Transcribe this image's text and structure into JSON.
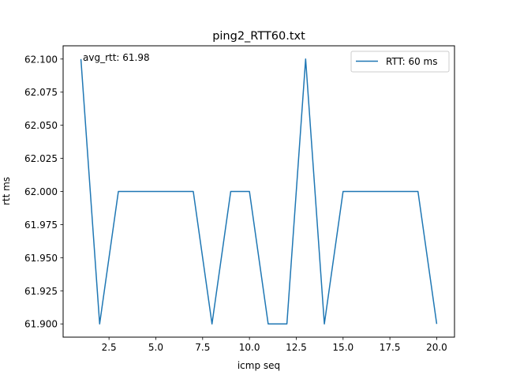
{
  "chart_data": {
    "type": "line",
    "title": "ping2_RTT60.txt",
    "xlabel": "icmp seq",
    "ylabel": "rtt ms",
    "xlim": [
      0.05,
      20.95
    ],
    "ylim": [
      61.89,
      62.11
    ],
    "xticks": [
      2.5,
      5.0,
      7.5,
      10.0,
      12.5,
      15.0,
      17.5,
      20.0
    ],
    "xtick_labels": [
      "2.5",
      "5.0",
      "7.5",
      "10.0",
      "12.5",
      "15.0",
      "17.5",
      "20.0"
    ],
    "yticks": [
      61.9,
      61.925,
      61.95,
      61.975,
      62.0,
      62.025,
      62.05,
      62.075,
      62.1
    ],
    "ytick_labels": [
      "61.900",
      "61.925",
      "61.950",
      "61.975",
      "62.000",
      "62.025",
      "62.050",
      "62.075",
      "62.100"
    ],
    "grid": false,
    "legend_position": "top-right",
    "annotation": "avg_rtt: 61.98",
    "series": [
      {
        "name": "RTT: 60 ms",
        "color": "#1f77b4",
        "x": [
          1,
          2,
          3,
          4,
          5,
          6,
          7,
          8,
          9,
          10,
          11,
          12,
          13,
          14,
          15,
          16,
          17,
          18,
          19,
          20
        ],
        "y": [
          62.1,
          61.9,
          62.0,
          62.0,
          62.0,
          62.0,
          62.0,
          61.9,
          62.0,
          62.0,
          61.9,
          61.9,
          62.1,
          61.9,
          62.0,
          62.0,
          62.0,
          62.0,
          62.0,
          61.9
        ]
      }
    ]
  }
}
